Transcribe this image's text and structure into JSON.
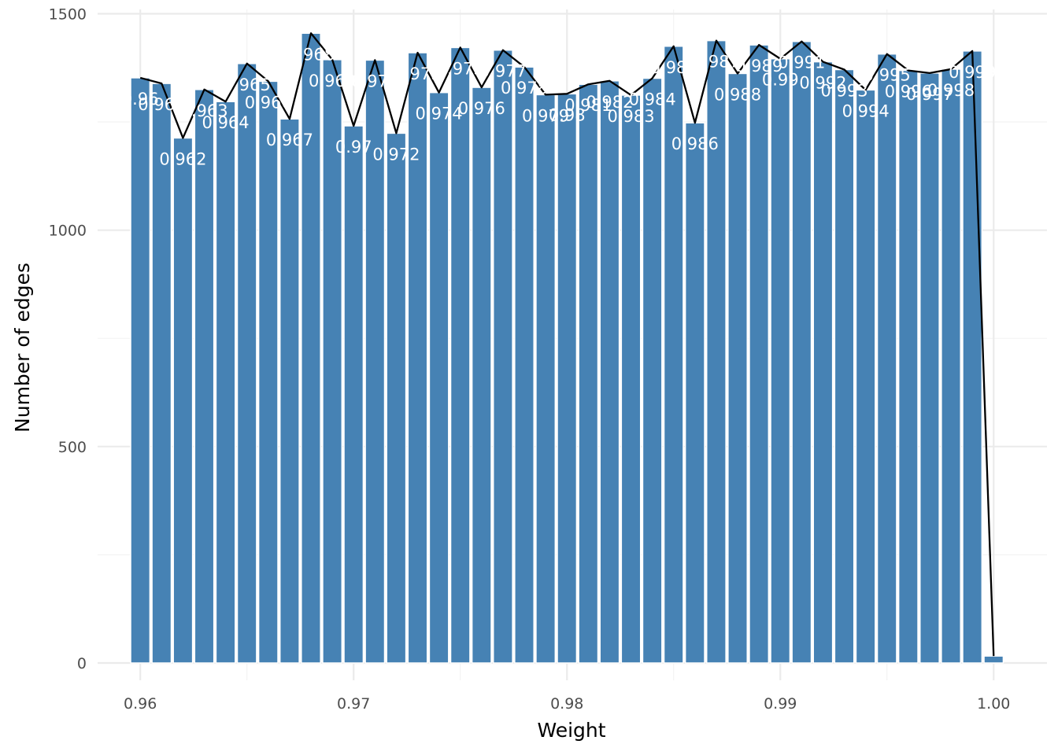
{
  "chart_data": {
    "type": "bar",
    "title": "",
    "xlabel": "Weight",
    "ylabel": "Number of edges",
    "xlim": [
      0.958,
      1.0025
    ],
    "ylim": [
      -40,
      1510
    ],
    "x_ticks": [
      0.96,
      0.97,
      0.98,
      0.99,
      1.0
    ],
    "x_tick_labels": [
      "0.96",
      "0.97",
      "0.98",
      "0.99",
      "1.00"
    ],
    "y_ticks": [
      0,
      500,
      1000,
      1500
    ],
    "y_tick_labels": [
      "0",
      "500",
      "1000",
      "1500"
    ],
    "bar_width": 0.0009,
    "bar_color": "#4682b4",
    "line_color": "#000000",
    "grid": true,
    "legend": "none",
    "x": [
      0.96,
      0.961,
      0.962,
      0.963,
      0.964,
      0.965,
      0.966,
      0.967,
      0.968,
      0.969,
      0.97,
      0.971,
      0.972,
      0.973,
      0.974,
      0.975,
      0.976,
      0.977,
      0.978,
      0.979,
      0.98,
      0.981,
      0.982,
      0.983,
      0.984,
      0.985,
      0.986,
      0.987,
      0.988,
      0.989,
      0.99,
      0.991,
      0.992,
      0.993,
      0.994,
      0.995,
      0.996,
      0.997,
      0.998,
      0.999,
      1.0
    ],
    "values": [
      1352,
      1339,
      1213,
      1325,
      1297,
      1385,
      1344,
      1257,
      1455,
      1394,
      1241,
      1393,
      1224,
      1410,
      1318,
      1422,
      1330,
      1416,
      1377,
      1313,
      1315,
      1337,
      1345,
      1312,
      1351,
      1425,
      1248,
      1438,
      1362,
      1428,
      1396,
      1436,
      1389,
      1371,
      1324,
      1407,
      1369,
      1363,
      1372,
      1414,
      16
    ],
    "bar_labels": [
      "0.96",
      "0.961",
      "0.962",
      "0.963",
      "0.964",
      "0.965",
      "0.966",
      "0.967",
      "0.968",
      "0.969",
      "0.97",
      "0.971",
      "0.972",
      "0.973",
      "0.974",
      "0.975",
      "0.976",
      "0.977",
      "0.978",
      "0.979",
      "0.98",
      "0.981",
      "0.982",
      "0.983",
      "0.984",
      "0.985",
      "0.986",
      "0.987",
      "0.988",
      "0.989",
      "0.99",
      "0.991",
      "0.992",
      "0.993",
      "0.994",
      "0.995",
      "0.996",
      "0.997",
      "0.998",
      "0.999",
      ""
    ]
  }
}
